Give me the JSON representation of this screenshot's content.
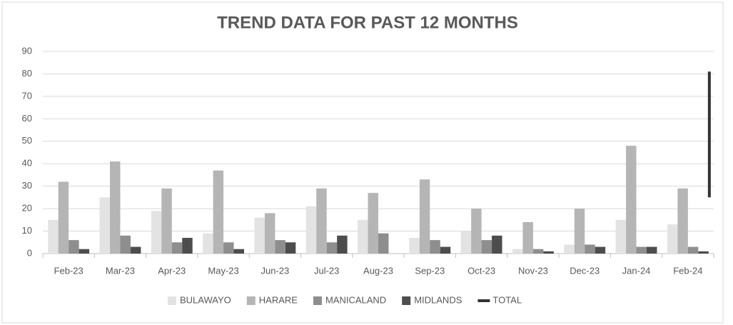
{
  "chart_data": {
    "type": "bar",
    "title": "TREND DATA FOR PAST 12 MONTHS",
    "categories": [
      "Feb-23",
      "Mar-23",
      "Apr-23",
      "May-23",
      "Jun-23",
      "Jul-23",
      "Aug-23",
      "Sep-23",
      "Oct-23",
      "Nov-23",
      "Dec-23",
      "Jan-24",
      "Feb-24"
    ],
    "series": [
      {
        "name": "BULAWAYO",
        "color": "#e3e3e3",
        "values": [
          15,
          25,
          19,
          9,
          16,
          21,
          15,
          7,
          10,
          2,
          4,
          15,
          13
        ]
      },
      {
        "name": "HARARE",
        "color": "#b5b5b5",
        "values": [
          32,
          41,
          29,
          37,
          18,
          29,
          27,
          33,
          20,
          14,
          20,
          48,
          29
        ]
      },
      {
        "name": "MANICALAND",
        "color": "#8e8e8e",
        "values": [
          6,
          8,
          5,
          5,
          6,
          5,
          9,
          6,
          6,
          2,
          4,
          3,
          3
        ]
      },
      {
        "name": "MIDLANDS",
        "color": "#4d4d4d",
        "values": [
          2,
          3,
          7,
          2,
          5,
          8,
          0,
          3,
          8,
          1,
          3,
          3,
          1
        ]
      },
      {
        "name": "TOTAL",
        "color": "#333333",
        "type": "line",
        "values": [
          null,
          null,
          null,
          null,
          null,
          null,
          null,
          null,
          null,
          null,
          null,
          null,
          81
        ]
      }
    ],
    "ylim": [
      0,
      90
    ],
    "yticks": [
      0,
      10,
      20,
      30,
      40,
      50,
      60,
      70,
      80,
      90
    ],
    "grid": true,
    "legend": "bottom"
  }
}
